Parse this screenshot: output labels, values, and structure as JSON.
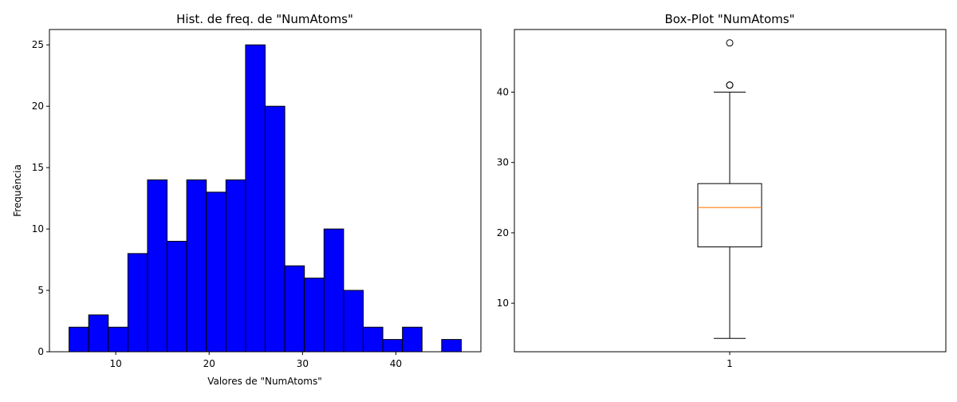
{
  "chart_data": [
    {
      "type": "bar",
      "title": "Hist. de freq. de \"NumAtoms\"",
      "xlabel": "Valores de \"NumAtoms\"",
      "ylabel": "Frequência",
      "bin_edges": [
        5.0,
        7.1,
        9.2,
        11.3,
        13.4,
        15.5,
        17.6,
        19.7,
        21.8,
        23.9,
        26.0,
        28.1,
        30.2,
        32.3,
        34.4,
        36.5,
        38.6,
        40.7,
        42.8,
        44.9,
        47.0
      ],
      "values": [
        2,
        3,
        2,
        8,
        14,
        9,
        14,
        13,
        14,
        25,
        20,
        7,
        6,
        10,
        5,
        2,
        1,
        2,
        0,
        1
      ],
      "xlim": [
        2.9,
        49.1
      ],
      "ylim": [
        0,
        26.25
      ],
      "xticks": [
        10,
        20,
        30,
        40
      ],
      "yticks": [
        0,
        5,
        10,
        15,
        20,
        25
      ],
      "bar_color": "#0000ff",
      "edge_color": "#000000"
    },
    {
      "type": "box",
      "title": "Box-Plot \"NumAtoms\"",
      "category": "1",
      "whisker_low": 5,
      "q1": 18,
      "median": 23.6,
      "q3": 27,
      "whisker_high": 40,
      "outliers": [
        41,
        41,
        47
      ],
      "ylim": [
        3.1,
        48.9
      ],
      "yticks": [
        10,
        20,
        30,
        40
      ],
      "median_color": "#ff7f0e"
    }
  ]
}
